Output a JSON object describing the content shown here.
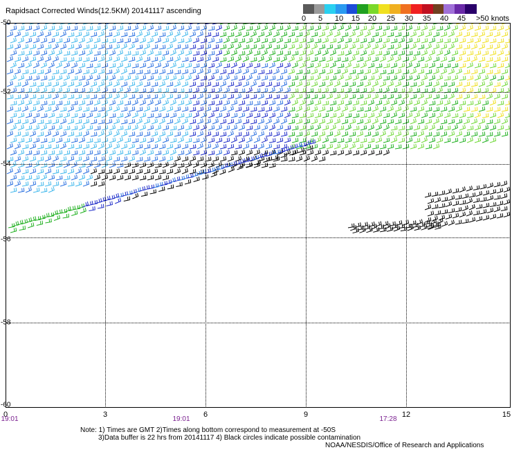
{
  "title": "Rapidsact Corrected Winds(12.5KM) 20141117 ascending",
  "legend": {
    "labels": [
      "0",
      "5",
      "10",
      "15",
      "20",
      "25",
      "30",
      "35",
      "40",
      "45",
      ">50 knots"
    ],
    "colors": [
      "#5a5a5a",
      "#9a9a9a",
      "#2ad0f0",
      "#2a9af0",
      "#1c4cd8",
      "#20a020",
      "#7ad82a",
      "#f0e020",
      "#f0b020",
      "#f07020",
      "#f02020",
      "#c01020",
      "#704020",
      "#a070d8",
      "#6a2aa8",
      "#2a006a"
    ]
  },
  "map": {
    "y_labels": [
      "-50",
      "-52",
      "-54",
      "-56",
      "-58",
      "-60"
    ],
    "x_labels": [
      "0",
      "3",
      "6",
      "9",
      "12",
      "15"
    ],
    "times": [
      "19:01",
      "19:01",
      "17:28"
    ]
  },
  "barb_colors": {
    "light": "#40b8ec",
    "mid": "#2a70e0",
    "dark": "#1c2ac8",
    "green": "#20b020",
    "lightgreen": "#70d838",
    "yellow": "#f0e020",
    "black": "#000000"
  },
  "notes": {
    "line1": "Note: 1) Times are GMT 2)Times along bottom correspond to measurement at -50S",
    "line2": "3)Data buffer is 22 hrs from 20141117 4) Black circles indicate possible contamination",
    "credit": "NOAA/NESDIS/Office of Research and Applications"
  }
}
